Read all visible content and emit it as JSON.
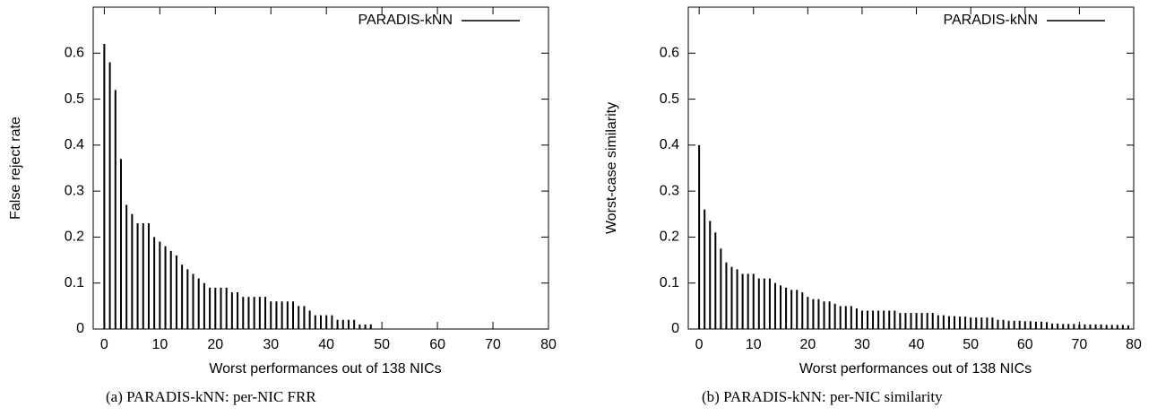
{
  "chart_data": [
    {
      "type": "bar",
      "xlabel": "Worst performances out of 138 NICs",
      "ylabel": "False reject rate",
      "caption": "(a) PARADIS-kNN: per-NIC FRR",
      "x": [
        0,
        1,
        2,
        3,
        4,
        5,
        6,
        7,
        8,
        9,
        10,
        11,
        12,
        13,
        14,
        15,
        16,
        17,
        18,
        19,
        20,
        21,
        22,
        23,
        24,
        25,
        26,
        27,
        28,
        29,
        30,
        31,
        32,
        33,
        34,
        35,
        36,
        37,
        38,
        39,
        40,
        41,
        42,
        43,
        44,
        45,
        46,
        47,
        48
      ],
      "series": [
        {
          "name": "PARADIS-kNN",
          "color": "#000000",
          "values": [
            0.62,
            0.58,
            0.52,
            0.37,
            0.27,
            0.25,
            0.23,
            0.23,
            0.23,
            0.2,
            0.19,
            0.18,
            0.17,
            0.16,
            0.14,
            0.13,
            0.12,
            0.11,
            0.1,
            0.09,
            0.09,
            0.09,
            0.09,
            0.08,
            0.08,
            0.07,
            0.07,
            0.07,
            0.07,
            0.07,
            0.06,
            0.06,
            0.06,
            0.06,
            0.06,
            0.05,
            0.05,
            0.04,
            0.03,
            0.03,
            0.03,
            0.03,
            0.02,
            0.02,
            0.02,
            0.02,
            0.01,
            0.01,
            0.01
          ]
        }
      ],
      "xlim": [
        -2,
        80
      ],
      "xticks": [
        0,
        10,
        20,
        30,
        40,
        50,
        60,
        70,
        80
      ],
      "ylim": [
        0,
        0.7
      ],
      "yticks": [
        0,
        0.1,
        0.2,
        0.3,
        0.4,
        0.5,
        0.6
      ],
      "legend": "top-right"
    },
    {
      "type": "bar",
      "xlabel": "Worst performances out of 138 NICs",
      "ylabel": "Worst-case similarity",
      "caption": "(b) PARADIS-kNN: per-NIC similarity",
      "x": [
        0,
        1,
        2,
        3,
        4,
        5,
        6,
        7,
        8,
        9,
        10,
        11,
        12,
        13,
        14,
        15,
        16,
        17,
        18,
        19,
        20,
        21,
        22,
        23,
        24,
        25,
        26,
        27,
        28,
        29,
        30,
        31,
        32,
        33,
        34,
        35,
        36,
        37,
        38,
        39,
        40,
        41,
        42,
        43,
        44,
        45,
        46,
        47,
        48,
        49,
        50,
        51,
        52,
        53,
        54,
        55,
        56,
        57,
        58,
        59,
        60,
        61,
        62,
        63,
        64,
        65,
        66,
        67,
        68,
        69,
        70,
        71,
        72,
        73,
        74,
        75,
        76,
        77,
        78,
        79
      ],
      "series": [
        {
          "name": "PARADIS-kNN",
          "color": "#000000",
          "values": [
            0.4,
            0.26,
            0.235,
            0.21,
            0.175,
            0.145,
            0.135,
            0.13,
            0.12,
            0.12,
            0.12,
            0.11,
            0.11,
            0.11,
            0.1,
            0.095,
            0.09,
            0.085,
            0.085,
            0.08,
            0.07,
            0.065,
            0.065,
            0.06,
            0.06,
            0.055,
            0.05,
            0.05,
            0.05,
            0.045,
            0.04,
            0.04,
            0.04,
            0.04,
            0.04,
            0.04,
            0.04,
            0.035,
            0.035,
            0.035,
            0.035,
            0.035,
            0.035,
            0.035,
            0.03,
            0.03,
            0.028,
            0.028,
            0.027,
            0.027,
            0.025,
            0.025,
            0.025,
            0.025,
            0.025,
            0.02,
            0.02,
            0.018,
            0.018,
            0.018,
            0.017,
            0.017,
            0.016,
            0.016,
            0.015,
            0.012,
            0.012,
            0.011,
            0.011,
            0.011,
            0.01,
            0.01,
            0.01,
            0.01,
            0.01,
            0.009,
            0.009,
            0.009,
            0.009,
            0.008
          ]
        }
      ],
      "xlim": [
        -2,
        80
      ],
      "xticks": [
        0,
        10,
        20,
        30,
        40,
        50,
        60,
        70,
        80
      ],
      "ylim": [
        0,
        0.7
      ],
      "yticks": [
        0,
        0.1,
        0.2,
        0.3,
        0.4,
        0.5,
        0.6
      ],
      "legend": "top-right"
    }
  ]
}
